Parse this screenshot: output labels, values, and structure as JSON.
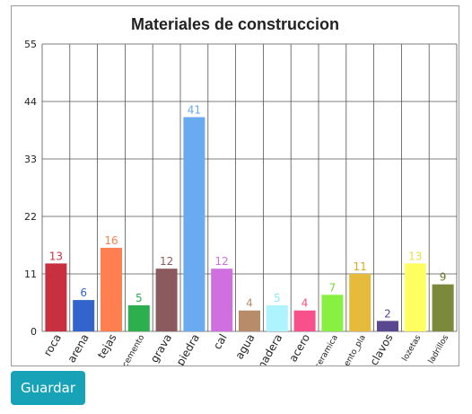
{
  "chart_data": {
    "type": "bar",
    "title": "Materiales de construccion",
    "xlabel": "",
    "ylabel": "",
    "ylim": [
      0,
      55
    ],
    "yticks": [
      0,
      11,
      22,
      33,
      44,
      55
    ],
    "grid": true,
    "categories": [
      "roca",
      "arena",
      "tejas",
      "cemento",
      "grava",
      "piedra",
      "cal",
      "agua",
      "madera",
      "acero",
      "ceramica",
      "cemento_pla",
      "clavos",
      "lozetas",
      "ladrillos"
    ],
    "values": [
      13,
      6,
      16,
      5,
      12,
      41,
      12,
      4,
      5,
      4,
      7,
      11,
      2,
      13,
      9
    ],
    "colors": [
      "#c8303f",
      "#3364cc",
      "#ff7f50",
      "#2eaf4e",
      "#8b5a5f",
      "#6aaaf0",
      "#d070e0",
      "#b88c6a",
      "#aef4ff",
      "#f7508a",
      "#88f040",
      "#e6bb3c",
      "#5b4690",
      "#ffff60",
      "#7a8a3a"
    ],
    "label_colors": [
      "#c8303f",
      "#3364cc",
      "#ff7f50",
      "#2eaf4e",
      "#8b5a5f",
      "#6aaaf0",
      "#d070e0",
      "#b88c6a",
      "#8ee8ff",
      "#f7508a",
      "#70dd30",
      "#d8aa20",
      "#5b4690",
      "#e8e040",
      "#6a7a2a"
    ]
  },
  "actions": {
    "save_label": "Guardar"
  }
}
